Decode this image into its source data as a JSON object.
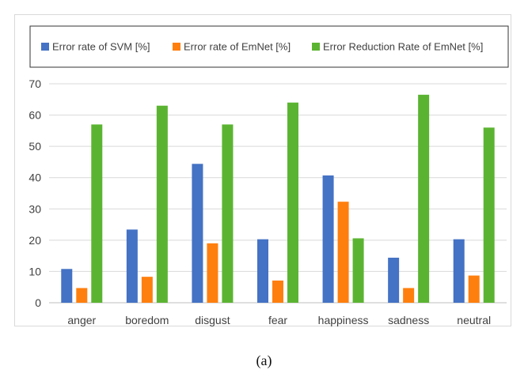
{
  "chart_data": {
    "type": "bar",
    "categories": [
      "anger",
      "boredom",
      "disgust",
      "fear",
      "happiness",
      "sadness",
      "neutral"
    ],
    "series": [
      {
        "name": "Error rate of SVM [%]",
        "color": "#4472c4",
        "values": [
          10.8,
          23.4,
          44.4,
          20.3,
          40.7,
          14.4,
          20.3
        ]
      },
      {
        "name": "Error rate of EmNet [%]",
        "color": "#ff7f0e",
        "values": [
          4.7,
          8.3,
          19.0,
          7.1,
          32.3,
          4.7,
          8.7
        ]
      },
      {
        "name": "Error Reduction Rate of EmNet [%]",
        "color": "#5bb431",
        "values": [
          57.0,
          63.0,
          57.0,
          64.0,
          20.6,
          66.5,
          56.0
        ]
      }
    ],
    "yticks": [
      0,
      10,
      20,
      30,
      40,
      50,
      60,
      70
    ],
    "ylim": [
      0,
      70
    ],
    "grid": true,
    "legend_position": "top"
  },
  "caption": "(a)"
}
